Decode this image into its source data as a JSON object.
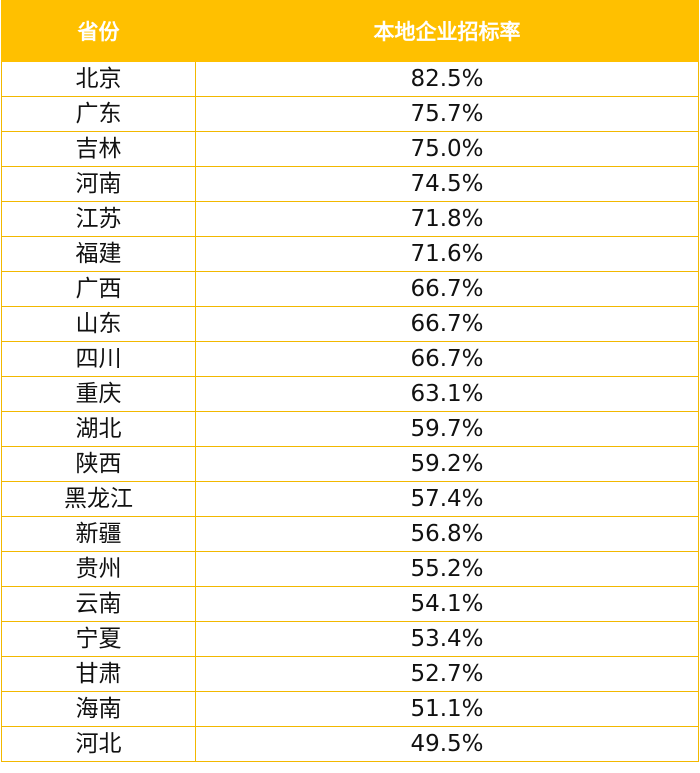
{
  "table": {
    "headers": [
      "省份",
      "本地企业招标率"
    ],
    "rows": [
      {
        "province": "北京",
        "rate": "82.5%"
      },
      {
        "province": "广东",
        "rate": "75.7%"
      },
      {
        "province": "吉林",
        "rate": "75.0%"
      },
      {
        "province": "河南",
        "rate": "74.5%"
      },
      {
        "province": "江苏",
        "rate": "71.8%"
      },
      {
        "province": "福建",
        "rate": "71.6%"
      },
      {
        "province": "广西",
        "rate": "66.7%"
      },
      {
        "province": "山东",
        "rate": "66.7%"
      },
      {
        "province": "四川",
        "rate": "66.7%"
      },
      {
        "province": "重庆",
        "rate": "63.1%"
      },
      {
        "province": "湖北",
        "rate": "59.7%"
      },
      {
        "province": "陕西",
        "rate": "59.2%"
      },
      {
        "province": "黑龙江",
        "rate": "57.4%"
      },
      {
        "province": "新疆",
        "rate": "56.8%"
      },
      {
        "province": "贵州",
        "rate": "55.2%"
      },
      {
        "province": "云南",
        "rate": "54.1%"
      },
      {
        "province": "宁夏",
        "rate": "53.4%"
      },
      {
        "province": "甘肃",
        "rate": "52.7%"
      },
      {
        "province": "海南",
        "rate": "51.1%"
      },
      {
        "province": "河北",
        "rate": "49.5%"
      }
    ]
  },
  "colors": {
    "header_bg": "#FFC000",
    "header_text": "#FFFFFF",
    "border": "#F2B800"
  }
}
